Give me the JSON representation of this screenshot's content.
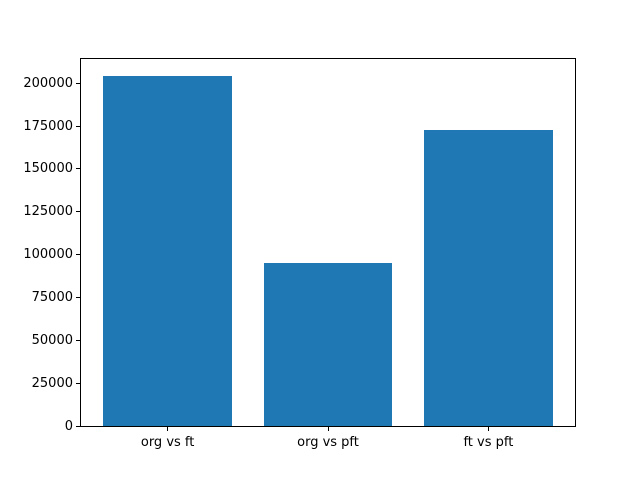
{
  "chart_data": {
    "type": "bar",
    "title": "",
    "xlabel": "",
    "ylabel": "",
    "categories": [
      "org vs ft",
      "org vs pft",
      "ft vs pft"
    ],
    "values": [
      204000,
      95000,
      173000
    ],
    "yticks": [
      0,
      25000,
      50000,
      75000,
      100000,
      125000,
      150000,
      175000,
      200000
    ],
    "ylim": [
      0,
      214200
    ],
    "xlim": [
      -0.54,
      2.54
    ],
    "bar_width": 0.8,
    "bar_color": "#1f77b4",
    "axis_color": "#000000",
    "background_color": "#ffffff",
    "grid": false,
    "legend": false
  }
}
